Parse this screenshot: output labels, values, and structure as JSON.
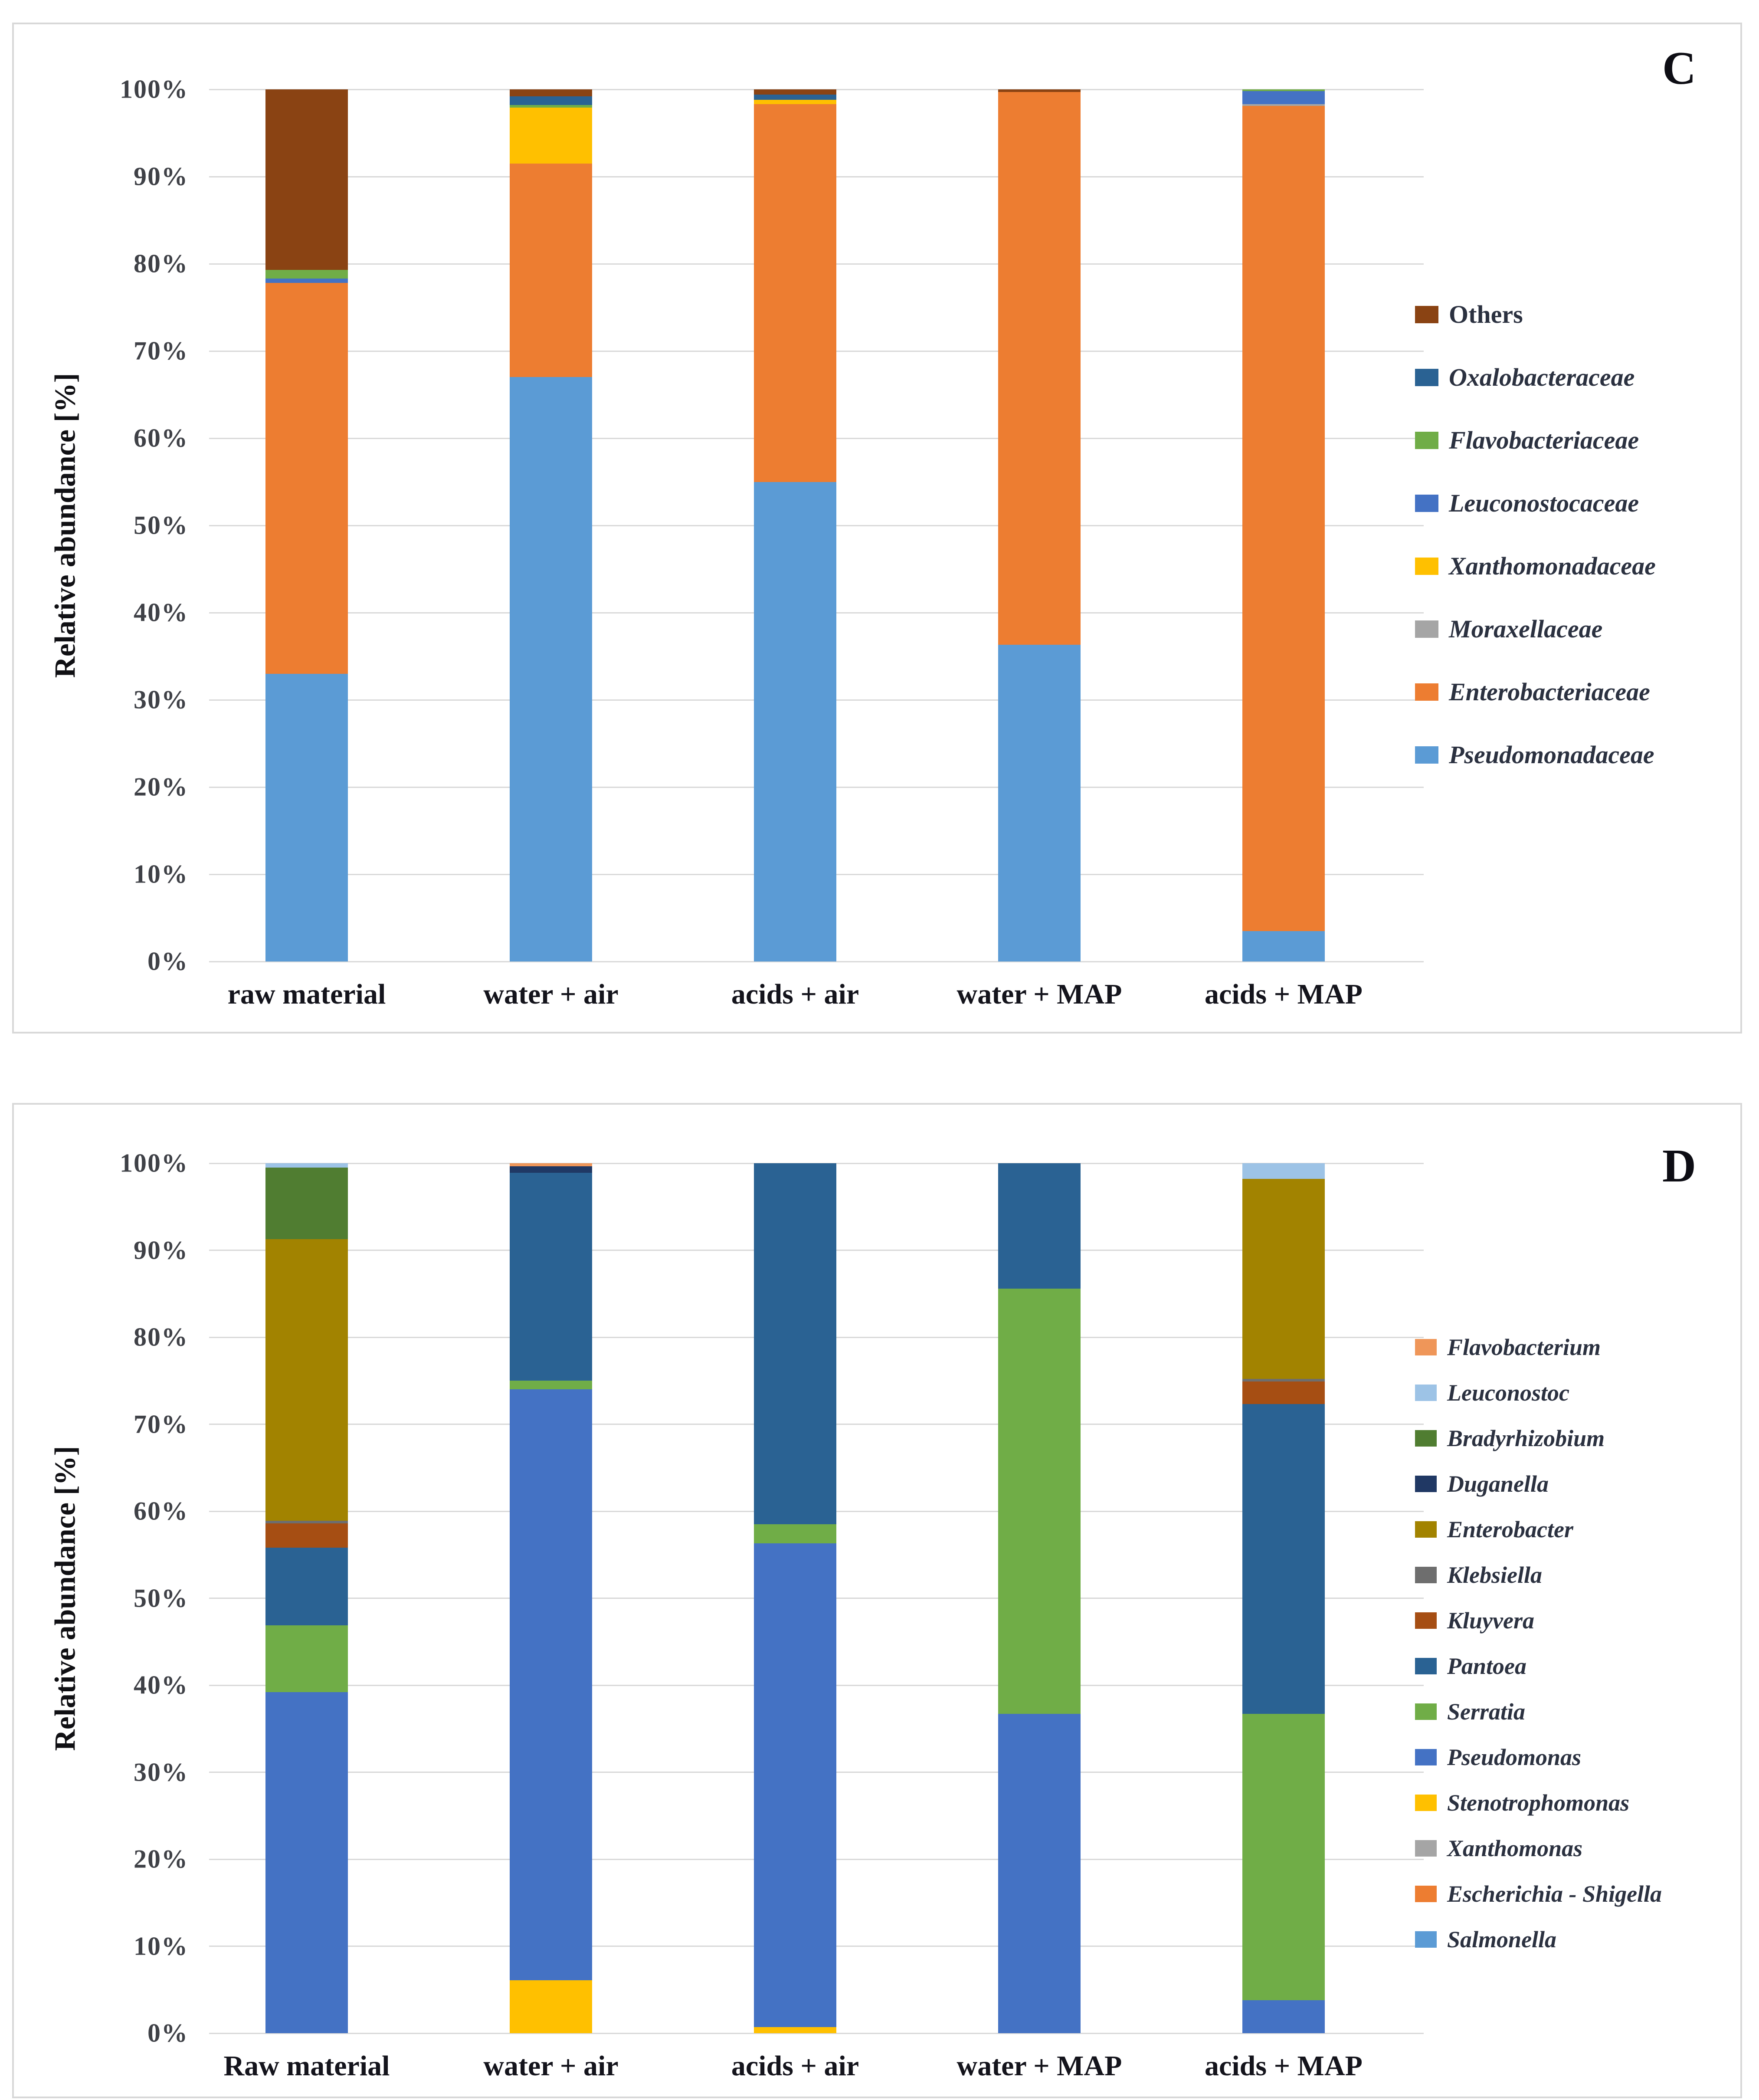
{
  "chart_data": [
    {
      "type": "bar",
      "stacked": true,
      "percent_stacked": true,
      "panel_label": "C",
      "ylabel": "Relative abundance [%]",
      "ylim": [
        0,
        100
      ],
      "grid": true,
      "legend_position": "right",
      "yticks": [
        "0%",
        "10%",
        "20%",
        "30%",
        "40%",
        "50%",
        "60%",
        "70%",
        "80%",
        "90%",
        "100%"
      ],
      "categories": [
        "raw material",
        "water + air",
        "acids + air",
        "water + MAP",
        "acids + MAP"
      ],
      "stack_order": "bottom-to-top",
      "series": [
        {
          "name": "Pseudomonadaceae",
          "color": "#5B9BD5",
          "values": [
            33.0,
            67.0,
            55.0,
            36.3,
            3.5
          ]
        },
        {
          "name": "Enterobacteriaceae",
          "color": "#ED7D31",
          "values": [
            44.8,
            24.5,
            43.3,
            63.4,
            94.6
          ]
        },
        {
          "name": "Moraxellaceae",
          "color": "#A5A5A5",
          "values": [
            0,
            0,
            0,
            0,
            0.2
          ]
        },
        {
          "name": "Xanthomonadaceae",
          "color": "#FFC000",
          "values": [
            0,
            6.4,
            0.5,
            0,
            0
          ]
        },
        {
          "name": "Leuconostocaceae",
          "color": "#4472C4",
          "values": [
            0.5,
            0,
            0,
            0,
            1.5
          ]
        },
        {
          "name": "Flavobacteriaceae",
          "color": "#70AD47",
          "values": [
            1.0,
            0.3,
            0,
            0,
            0.2
          ]
        },
        {
          "name": "Oxalobacteraceae",
          "color": "#2A6293",
          "values": [
            0,
            1.0,
            0.6,
            0,
            0
          ]
        },
        {
          "name": "Others",
          "color": "#8A4313",
          "values": [
            20.7,
            0.8,
            0.6,
            0.3,
            0
          ]
        }
      ],
      "legend": [
        {
          "label": "Others",
          "color": "#8A4313",
          "italic": false
        },
        {
          "label": "Oxalobacteraceae",
          "color": "#2A6293",
          "italic": true
        },
        {
          "label": "Flavobacteriaceae",
          "color": "#70AD47",
          "italic": true
        },
        {
          "label": "Leuconostocaceae",
          "color": "#4472C4",
          "italic": true
        },
        {
          "label": "Xanthomonadaceae",
          "color": "#FFC000",
          "italic": true
        },
        {
          "label": "Moraxellaceae",
          "color": "#A5A5A5",
          "italic": true
        },
        {
          "label": "Enterobacteriaceae",
          "color": "#ED7D31",
          "italic": true
        },
        {
          "label": "Pseudomonadaceae",
          "color": "#5B9BD5",
          "italic": true
        }
      ]
    },
    {
      "type": "bar",
      "stacked": true,
      "percent_stacked": true,
      "panel_label": "D",
      "ylabel": "Relative abundance [%]",
      "ylim": [
        0,
        100
      ],
      "grid": true,
      "legend_position": "right",
      "yticks": [
        "0%",
        "10%",
        "20%",
        "30%",
        "40%",
        "50%",
        "60%",
        "70%",
        "80%",
        "90%",
        "100%"
      ],
      "categories": [
        "Raw material",
        "water + air",
        "acids + air",
        "water + MAP",
        "acids + MAP"
      ],
      "stack_order": "bottom-to-top",
      "series": [
        {
          "name": "Salmonella",
          "color": "#5B9BD5",
          "values": [
            0,
            0,
            0,
            0,
            0
          ]
        },
        {
          "name": "Escherichia - Shigella",
          "color": "#ED7D31",
          "values": [
            0,
            0,
            0,
            0,
            0
          ]
        },
        {
          "name": "Xanthomonas",
          "color": "#A5A5A5",
          "values": [
            0,
            0,
            0,
            0,
            0
          ]
        },
        {
          "name": "Stenotrophomonas",
          "color": "#FFC000",
          "values": [
            0,
            6.1,
            0.7,
            0,
            0
          ]
        },
        {
          "name": "Pseudomonas",
          "color": "#4472C4",
          "values": [
            39.2,
            67.9,
            55.6,
            36.7,
            3.8
          ]
        },
        {
          "name": "Serratia",
          "color": "#70AD47",
          "values": [
            7.7,
            1.0,
            2.2,
            48.9,
            32.9
          ]
        },
        {
          "name": "Pantoea",
          "color": "#2A6293",
          "values": [
            8.9,
            23.9,
            41.5,
            14.4,
            35.6
          ]
        },
        {
          "name": "Kluyvera",
          "color": "#A64E13",
          "values": [
            2.8,
            0,
            0,
            0,
            2.6
          ]
        },
        {
          "name": "Klebsiella",
          "color": "#6E6E6E",
          "values": [
            0.3,
            0,
            0,
            0,
            0.3
          ]
        },
        {
          "name": "Enterobacter",
          "color": "#A28300",
          "values": [
            32.4,
            0,
            0,
            0,
            23.0
          ]
        },
        {
          "name": "Duganella",
          "color": "#203864",
          "values": [
            0,
            0.75,
            0,
            0,
            0
          ]
        },
        {
          "name": "Bradyrhizobium",
          "color": "#507D31",
          "values": [
            8.2,
            0,
            0,
            0,
            0
          ]
        },
        {
          "name": "Leuconostoc",
          "color": "#9DC3E6",
          "values": [
            0.5,
            0,
            0,
            0,
            1.8
          ]
        },
        {
          "name": "Flavobacterium",
          "color": "#EF9659",
          "values": [
            0,
            0.35,
            0,
            0,
            0
          ]
        }
      ],
      "legend": [
        {
          "label": "Flavobacterium",
          "color": "#EF9659",
          "italic": true
        },
        {
          "label": "Leuconostoc",
          "color": "#9DC3E6",
          "italic": true
        },
        {
          "label": "Bradyrhizobium",
          "color": "#507D31",
          "italic": true
        },
        {
          "label": "Duganella",
          "color": "#203864",
          "italic": true
        },
        {
          "label": "Enterobacter",
          "color": "#A28300",
          "italic": true
        },
        {
          "label": "Klebsiella",
          "color": "#6E6E6E",
          "italic": true
        },
        {
          "label": "Kluyvera",
          "color": "#A64E13",
          "italic": true
        },
        {
          "label": "Pantoea",
          "color": "#2A6293",
          "italic": true
        },
        {
          "label": "Serratia",
          "color": "#70AD47",
          "italic": true
        },
        {
          "label": "Pseudomonas",
          "color": "#4472C4",
          "italic": true
        },
        {
          "label": "Stenotrophomonas",
          "color": "#FFC000",
          "italic": true
        },
        {
          "label": "Xanthomonas",
          "color": "#A5A5A5",
          "italic": true
        },
        {
          "label": "Escherichia - Shigella",
          "color": "#ED7D31",
          "italic": true
        },
        {
          "label": "Salmonella",
          "color": "#5B9BD5",
          "italic": true
        }
      ]
    }
  ]
}
